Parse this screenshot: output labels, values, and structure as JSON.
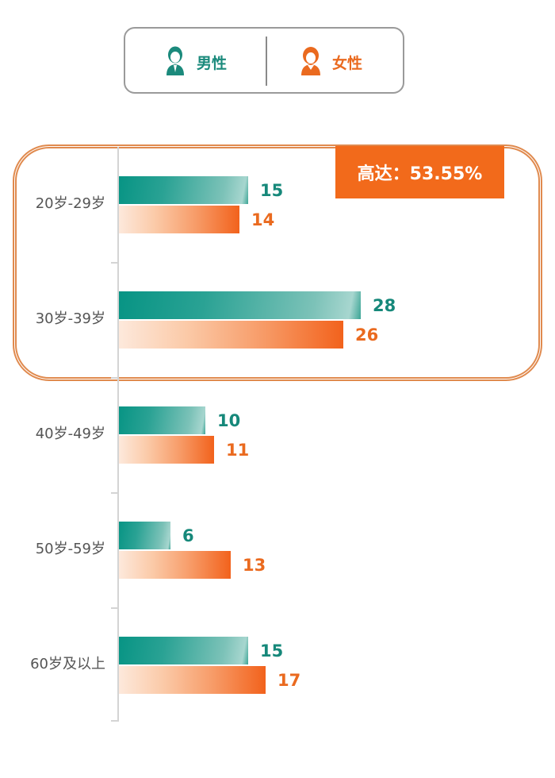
{
  "legend": {
    "male": {
      "label": "男性",
      "icon": "male-user-icon",
      "color": "#1b8a7c"
    },
    "female": {
      "label": "女性",
      "icon": "female-user-icon",
      "color": "#ea6a1f"
    }
  },
  "highlight": {
    "text": "高达：53.55%",
    "color": "#f26a1b",
    "covers": [
      "20岁-29岁",
      "30岁-39岁"
    ]
  },
  "chart_data": {
    "type": "bar",
    "orientation": "horizontal",
    "title": "",
    "xlabel": "",
    "ylabel": "",
    "categories": [
      "20岁-29岁",
      "30岁-39岁",
      "40岁-49岁",
      "50岁-59岁",
      "60岁及以上"
    ],
    "series": [
      {
        "name": "男性",
        "color": "#079484",
        "values": [
          15,
          28,
          10,
          6,
          15
        ]
      },
      {
        "name": "女性",
        "color": "#f2621c",
        "values": [
          14,
          26,
          11,
          13,
          17
        ]
      }
    ],
    "grid": false,
    "legend_position": "top",
    "annotations": [
      {
        "text": "高达：53.55%",
        "target": [
          "20岁-29岁",
          "30岁-39岁"
        ]
      }
    ]
  }
}
